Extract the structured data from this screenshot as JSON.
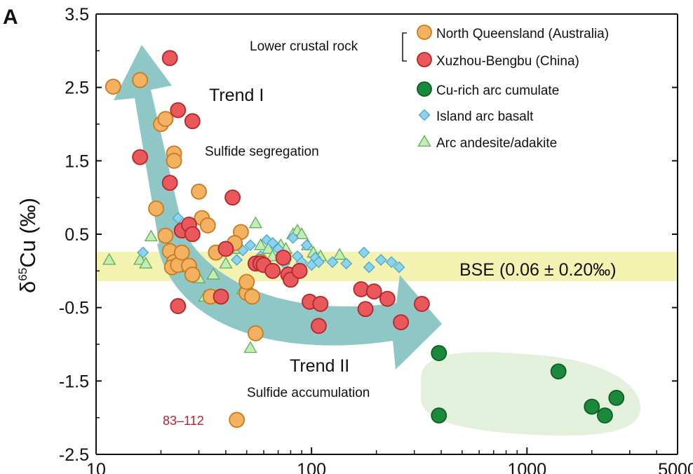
{
  "chart_data": {
    "type": "scatter",
    "panel_label": "A",
    "xscale": "log",
    "xlim": [
      10,
      5000
    ],
    "ylim": [
      -2.5,
      3.5
    ],
    "y_ticks": [
      "3.5",
      "2.5",
      "1.5",
      "0.5",
      "-0.5",
      "-1.5",
      "-2.5"
    ],
    "y_tick_values": [
      3.5,
      2.5,
      1.5,
      0.5,
      -0.5,
      -1.5,
      -2.5
    ],
    "x_ticks": [
      "10",
      "100",
      "1000",
      "5000"
    ],
    "x_tick_values": [
      10,
      100,
      1000,
      5000
    ],
    "ylabel_main": "δ",
    "ylabel_sup": "65",
    "ylabel_rest": "Cu (‰)",
    "xlabel": "",
    "legend": {
      "group_label": "Lower crustal rock",
      "entries": [
        "North Queensland (Australia)",
        "Xuzhou-Bengbu (China)",
        "Cu-rich arc cumulate",
        "Island arc basalt",
        "Arc andesite/adakite"
      ]
    },
    "bse_band": {
      "label": "BSE (0.06 ± 0.20‰)",
      "center": 0.06,
      "halfwidth": 0.2,
      "color": "#f4f2b0"
    },
    "annotations": {
      "trend1_title": "Trend I",
      "trend1_sub": "Sulfide segregation",
      "trend2_title": "Trend II",
      "trend2_sub": "Sulfide accumulation",
      "outlier_note": "83–112"
    },
    "colors": {
      "north_queensland": "#f3b162",
      "xuzhou_bengbu": "#e9585a",
      "cu_rich_cumulate": "#1a8a3a",
      "island_arc_basalt": "#8dd3ec",
      "arc_andesite": "#c4ecb6",
      "arrow": "#8fc7c7",
      "cumulate_field": "#e3f1dc"
    },
    "series": [
      {
        "name": "North Queensland (Australia)",
        "marker": "circle",
        "points": [
          [
            12,
            2.51
          ],
          [
            16,
            2.6
          ],
          [
            20,
            2.0
          ],
          [
            21,
            2.07
          ],
          [
            23,
            1.6
          ],
          [
            23,
            1.5
          ],
          [
            19,
            0.85
          ],
          [
            21,
            0.48
          ],
          [
            30,
            1.08
          ],
          [
            31,
            0.72
          ],
          [
            33,
            0.62
          ],
          [
            36,
            0.25
          ],
          [
            22,
            0.27
          ],
          [
            23,
            0.12
          ],
          [
            22.5,
            0.05
          ],
          [
            24,
            0.08
          ],
          [
            25,
            0.25
          ],
          [
            27,
            0.07
          ],
          [
            28,
            -0.05
          ],
          [
            34,
            -0.35
          ],
          [
            38,
            -0.35
          ],
          [
            47,
            0.53
          ],
          [
            44,
            0.38
          ],
          [
            50,
            -0.3
          ],
          [
            50,
            -0.15
          ],
          [
            53,
            -0.35
          ],
          [
            58,
            0.12
          ],
          [
            55,
            -0.85
          ],
          [
            45,
            -2.03
          ]
        ]
      },
      {
        "name": "Xuzhou-Bengbu (China)",
        "marker": "circle",
        "points": [
          [
            22,
            2.9
          ],
          [
            24,
            2.19
          ],
          [
            28,
            2.04
          ],
          [
            16,
            1.55
          ],
          [
            22,
            1.2
          ],
          [
            25,
            0.55
          ],
          [
            27,
            0.63
          ],
          [
            28,
            0.5
          ],
          [
            43,
            1.0
          ],
          [
            40,
            0.3
          ],
          [
            24,
            -0.48
          ],
          [
            38,
            -0.35
          ],
          [
            55,
            0.1
          ],
          [
            58,
            0.1
          ],
          [
            60,
            0.08
          ],
          [
            66,
            0.0
          ],
          [
            74,
            0.18
          ],
          [
            78,
            -0.05
          ],
          [
            80,
            -0.12
          ],
          [
            88,
            0.0
          ],
          [
            98,
            -0.42
          ],
          [
            108,
            -0.75
          ],
          [
            110,
            -0.45
          ],
          [
            170,
            -0.25
          ],
          [
            178,
            -0.52
          ],
          [
            195,
            -0.28
          ],
          [
            225,
            -0.38
          ],
          [
            260,
            -0.7
          ],
          [
            325,
            -0.45
          ]
        ]
      },
      {
        "name": "Cu-rich arc cumulate",
        "marker": "circle",
        "points": [
          [
            390,
            -1.12
          ],
          [
            390,
            -1.97
          ],
          [
            1400,
            -1.37
          ],
          [
            2000,
            -1.85
          ],
          [
            2300,
            -1.97
          ],
          [
            2600,
            -1.73
          ]
        ]
      },
      {
        "name": "Island arc basalt",
        "marker": "diamond",
        "points": [
          [
            16.5,
            0.25
          ],
          [
            24,
            0.72
          ],
          [
            45,
            0.15
          ],
          [
            48,
            0.28
          ],
          [
            52,
            0.35
          ],
          [
            58,
            0.2
          ],
          [
            62,
            0.42
          ],
          [
            66,
            0.38
          ],
          [
            70,
            0.3
          ],
          [
            75,
            0.1
          ],
          [
            82,
            0.45
          ],
          [
            86,
            0.2
          ],
          [
            90,
            0.12
          ],
          [
            95,
            0.35
          ],
          [
            100,
            0.08
          ],
          [
            104,
            0.18
          ],
          [
            108,
            0.12
          ],
          [
            125,
            0.12
          ],
          [
            145,
            0.1
          ],
          [
            175,
            0.25
          ],
          [
            185,
            0.05
          ],
          [
            210,
            0.15
          ],
          [
            235,
            0.12
          ],
          [
            255,
            0.05
          ]
        ]
      },
      {
        "name": "Arc andesite/adakite",
        "marker": "triangle",
        "points": [
          [
            11.5,
            0.15
          ],
          [
            16,
            0.15
          ],
          [
            17,
            0.1
          ],
          [
            18,
            0.47
          ],
          [
            23,
            0.15
          ],
          [
            26,
            0.05
          ],
          [
            30,
            -0.1
          ],
          [
            32,
            -0.35
          ],
          [
            35,
            -0.05
          ],
          [
            40,
            0.1
          ],
          [
            46,
            0.3
          ],
          [
            48,
            -0.25
          ],
          [
            55,
            0.65
          ],
          [
            58,
            0.35
          ],
          [
            63,
            0.3
          ],
          [
            66,
            0.2
          ],
          [
            72,
            0.35
          ],
          [
            76,
            0.3
          ],
          [
            82,
            0.5
          ],
          [
            86,
            0.55
          ],
          [
            90,
            0.5
          ],
          [
            96,
            0.35
          ],
          [
            102,
            0.25
          ],
          [
            110,
            0.2
          ],
          [
            135,
            0.22
          ],
          [
            52,
            -1.05
          ]
        ]
      }
    ]
  }
}
